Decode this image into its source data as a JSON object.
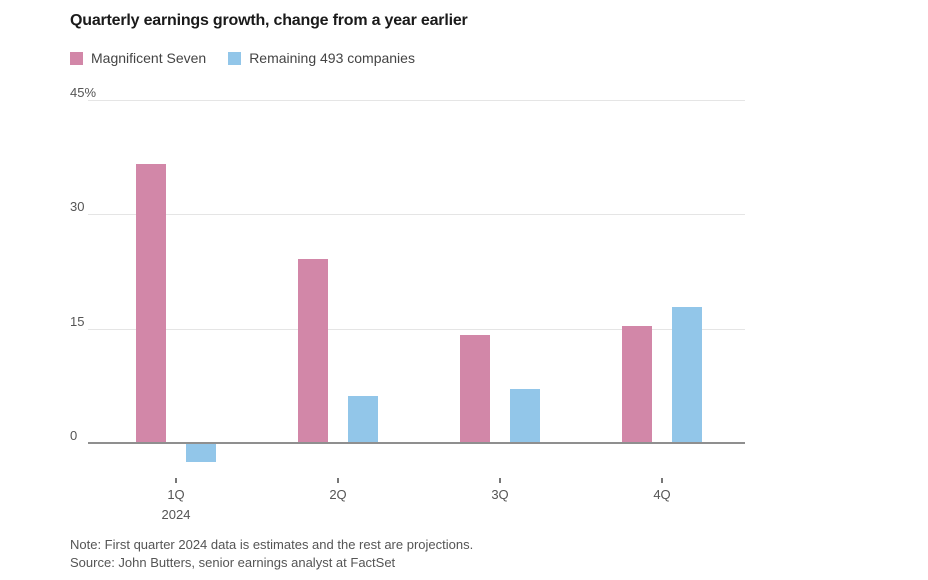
{
  "title": "Quarterly earnings growth, change from a year earlier",
  "legend": [
    {
      "label": "Magnificent Seven",
      "color": "#d287a8"
    },
    {
      "label": "Remaining 493 companies",
      "color": "#92c6e9"
    }
  ],
  "chart_data": {
    "type": "bar",
    "categories": [
      "1Q",
      "2Q",
      "3Q",
      "4Q"
    ],
    "x_year_sublabel": "2024",
    "series": [
      {
        "name": "Magnificent Seven",
        "color": "#d287a8",
        "values": [
          36.5,
          24,
          14,
          15.2
        ]
      },
      {
        "name": "Remaining 493 companies",
        "color": "#92c6e9",
        "values": [
          -2.4,
          6,
          7,
          17.7
        ]
      }
    ],
    "ylim": [
      -5,
      45
    ],
    "yticks": [
      {
        "value": 0,
        "label": "0"
      },
      {
        "value": 15,
        "label": "15"
      },
      {
        "value": 30,
        "label": "30"
      },
      {
        "value": 45,
        "label": "45%"
      }
    ],
    "grid": true,
    "legend_position": "top",
    "title": "Quarterly earnings growth, change from a year earlier"
  },
  "note": "Note: First quarter 2024 data is estimates and the rest are projections.",
  "source": "Source: John Butters, senior earnings analyst at FactSet"
}
